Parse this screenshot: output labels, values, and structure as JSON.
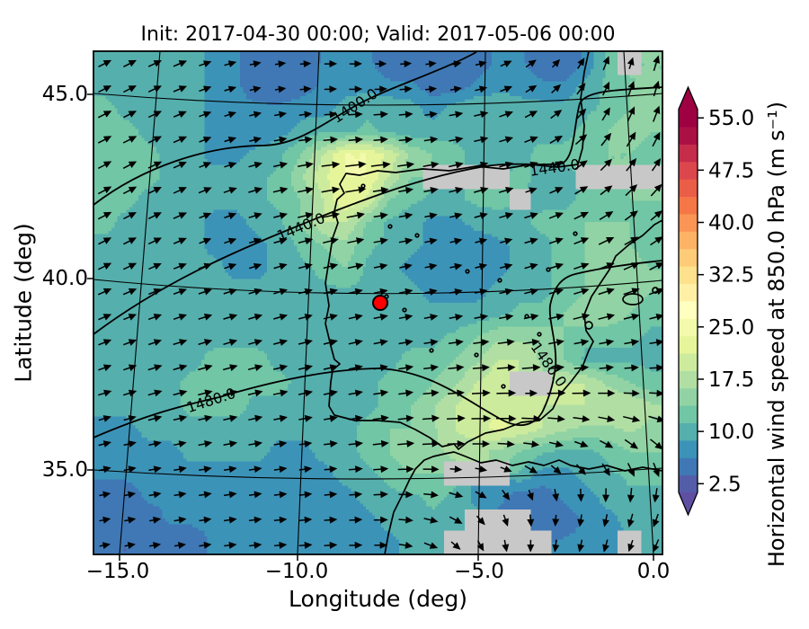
{
  "title": "Init: 2017-04-30 00:00; Valid: 2017-05-06 00:00",
  "axes": {
    "xlabel": "Longitude (deg)",
    "ylabel": "Latitude (deg)",
    "xticks": [
      "−15.0",
      "−10.0",
      "−5.0",
      "0.0"
    ],
    "yticks": [
      "45.0",
      "40.0",
      "35.0"
    ]
  },
  "colorbar": {
    "label": "Horizontal wind speed at 850.0 hPa (m s⁻¹)",
    "tick_values": [
      2.5,
      10.0,
      17.5,
      25.0,
      32.5,
      40.0,
      47.5,
      55.0
    ],
    "tick_labels": [
      "2.5",
      "10.0",
      "17.5",
      "25.0",
      "32.5",
      "40.0",
      "47.5",
      "55.0"
    ],
    "level_min": 1.25,
    "level_max": 56.25,
    "level_step": 2.5,
    "extend": "both",
    "colormap": "Spectral_r",
    "colormap_stops": [
      "#5e4fa2",
      "#3288bd",
      "#66c2a5",
      "#abdda4",
      "#e6f598",
      "#ffffbf",
      "#fee08b",
      "#fdae61",
      "#f46d43",
      "#d53e4f",
      "#9e0142"
    ]
  },
  "colors": {
    "marker_red": "#ff0000",
    "masked_gray": "#c8c8c8",
    "line_black": "#000000"
  },
  "chart_data": {
    "type": "heatmap",
    "title": "Init: 2017-04-30 00:00; Valid: 2017-05-06 00:00",
    "xlabel": "Longitude (deg)",
    "ylabel": "Latitude (deg)",
    "lon_range": [
      -16.1,
      0.9
    ],
    "lat_range": [
      33.6,
      46.3
    ],
    "xticks": [
      -15.0,
      -10.0,
      -5.0,
      0.0
    ],
    "yticks": [
      45.0,
      40.0,
      35.0
    ],
    "contour_levels": [
      1400.0,
      1440.0,
      1480.0
    ],
    "contour_labels": [
      "1400.0",
      "1440.0",
      "1440.0",
      "1480.0",
      "1480.0"
    ],
    "marker_lonlat": [
      -7.9,
      39.4
    ],
    "wind_speed_grid": {
      "cols": 26,
      "rows": 22,
      "units": "m s⁻¹",
      "masked_value": null,
      "values": [
        [
          12,
          12,
          12,
          12,
          11,
          9,
          8,
          6,
          5,
          5,
          8,
          8,
          8,
          6,
          6,
          5,
          5,
          6,
          8,
          8,
          6,
          5,
          8,
          13,
          null,
          15
        ],
        [
          12,
          12,
          12,
          12,
          11,
          9,
          8,
          6,
          5,
          6,
          8,
          9,
          9,
          8,
          8,
          6,
          6,
          8,
          9,
          9,
          8,
          8,
          11,
          13,
          15,
          15
        ],
        [
          13,
          12,
          12,
          11,
          11,
          9,
          8,
          8,
          8,
          9,
          9,
          11,
          12,
          12,
          11,
          9,
          11,
          12,
          12,
          11,
          11,
          11,
          12,
          13,
          15,
          17
        ],
        [
          13,
          13,
          12,
          12,
          11,
          9,
          8,
          8,
          9,
          11,
          12,
          12,
          13,
          12,
          11,
          11,
          12,
          12,
          12,
          12,
          12,
          12,
          13,
          15,
          17,
          15
        ],
        [
          13,
          13,
          13,
          12,
          11,
          9,
          9,
          11,
          12,
          15,
          20,
          25,
          25,
          22,
          17,
          15,
          13,
          12,
          12,
          12,
          13,
          13,
          13,
          15,
          15,
          13
        ],
        [
          13,
          13,
          13,
          12,
          12,
          11,
          11,
          12,
          13,
          17,
          22,
          25,
          25,
          20,
          15,
          null,
          null,
          null,
          null,
          13,
          12,
          12,
          null,
          null,
          null,
          null
        ],
        [
          13,
          13,
          12,
          12,
          12,
          11,
          11,
          12,
          13,
          15,
          20,
          25,
          22,
          15,
          13,
          12,
          12,
          13,
          13,
          null,
          12,
          12,
          13,
          13,
          15,
          15
        ],
        [
          13,
          12,
          12,
          12,
          11,
          9,
          9,
          11,
          12,
          15,
          20,
          20,
          15,
          12,
          11,
          9,
          9,
          11,
          12,
          12,
          13,
          13,
          15,
          15,
          15,
          13
        ],
        [
          12,
          12,
          12,
          11,
          11,
          9,
          9,
          9,
          11,
          13,
          15,
          17,
          13,
          12,
          11,
          9,
          8,
          8,
          9,
          11,
          12,
          13,
          15,
          17,
          15,
          13
        ],
        [
          12,
          12,
          11,
          11,
          11,
          11,
          9,
          9,
          11,
          12,
          13,
          15,
          12,
          11,
          9,
          8,
          8,
          8,
          9,
          11,
          12,
          13,
          15,
          17,
          17,
          15
        ],
        [
          12,
          12,
          11,
          11,
          11,
          11,
          11,
          11,
          12,
          12,
          12,
          12,
          12,
          11,
          11,
          9,
          9,
          9,
          11,
          12,
          12,
          13,
          15,
          17,
          17,
          15
        ],
        [
          11,
          11,
          11,
          11,
          12,
          12,
          12,
          12,
          12,
          12,
          12,
          12,
          12,
          12,
          11,
          11,
          11,
          11,
          12,
          13,
          13,
          15,
          17,
          17,
          15,
          13
        ],
        [
          11,
          11,
          11,
          12,
          12,
          12,
          12,
          12,
          12,
          12,
          12,
          12,
          12,
          12,
          12,
          12,
          13,
          15,
          17,
          17,
          17,
          15,
          13,
          13,
          13,
          12
        ],
        [
          11,
          11,
          12,
          12,
          12,
          13,
          13,
          13,
          12,
          12,
          12,
          12,
          12,
          12,
          13,
          13,
          15,
          17,
          20,
          20,
          17,
          15,
          12,
          12,
          12,
          12
        ],
        [
          11,
          11,
          12,
          12,
          13,
          13,
          13,
          13,
          13,
          12,
          12,
          12,
          12,
          13,
          13,
          15,
          17,
          20,
          22,
          null,
          null,
          20,
          20,
          17,
          15,
          13
        ],
        [
          11,
          11,
          12,
          12,
          13,
          13,
          13,
          12,
          12,
          12,
          11,
          12,
          12,
          13,
          15,
          17,
          20,
          22,
          22,
          22,
          20,
          20,
          20,
          20,
          20,
          18
        ],
        [
          9,
          9,
          11,
          11,
          12,
          12,
          12,
          12,
          11,
          11,
          11,
          12,
          13,
          15,
          15,
          17,
          20,
          22,
          23,
          22,
          20,
          18,
          17,
          17,
          18,
          17
        ],
        [
          9,
          9,
          9,
          9,
          11,
          11,
          11,
          11,
          9,
          9,
          11,
          12,
          13,
          15,
          17,
          17,
          18,
          18,
          17,
          15,
          13,
          12,
          12,
          13,
          15,
          15
        ],
        [
          8,
          8,
          9,
          9,
          9,
          9,
          9,
          9,
          9,
          9,
          9,
          11,
          12,
          13,
          15,
          15,
          null,
          null,
          null,
          12,
          9,
          9,
          11,
          12,
          13,
          13
        ],
        [
          6,
          6,
          8,
          8,
          9,
          9,
          9,
          9,
          9,
          9,
          9,
          9,
          11,
          12,
          12,
          13,
          12,
          9,
          8,
          6,
          6,
          8,
          9,
          11,
          12,
          12
        ],
        [
          6,
          6,
          6,
          8,
          8,
          8,
          9,
          9,
          9,
          9,
          9,
          9,
          9,
          11,
          12,
          12,
          12,
          null,
          null,
          null,
          6,
          6,
          8,
          9,
          11,
          11
        ],
        [
          5,
          5,
          6,
          6,
          6,
          8,
          8,
          8,
          8,
          9,
          9,
          9,
          9,
          9,
          11,
          12,
          null,
          null,
          null,
          null,
          null,
          8,
          8,
          9,
          null,
          11
        ]
      ]
    },
    "wind_direction_grid": {
      "cols": 13,
      "rows": 11,
      "components": "[u_east, v_north]",
      "uv": [
        [
          [
            1,
            0.5
          ],
          [
            1,
            0.5
          ],
          [
            1,
            0.4
          ],
          [
            1,
            0.25
          ],
          [
            1,
            0.1
          ],
          [
            1,
            0
          ],
          [
            1,
            0
          ],
          [
            1,
            0.1
          ],
          [
            1,
            0.2
          ],
          [
            0.8,
            0.5
          ],
          [
            0.5,
            0.7
          ],
          [
            0.3,
            1
          ],
          [
            0.3,
            1
          ]
        ],
        [
          [
            1,
            0.5
          ],
          [
            1,
            0.5
          ],
          [
            1,
            0.4
          ],
          [
            1,
            0.3
          ],
          [
            1,
            0.15
          ],
          [
            1,
            0.05
          ],
          [
            1,
            0.05
          ],
          [
            1,
            0.1
          ],
          [
            1,
            0.2
          ],
          [
            0.8,
            0.4
          ],
          [
            0.6,
            0.6
          ],
          [
            0.4,
            0.9
          ],
          [
            0.3,
            1
          ]
        ],
        [
          [
            1,
            0.55
          ],
          [
            1,
            0.5
          ],
          [
            1,
            0.45
          ],
          [
            1,
            0.3
          ],
          [
            1,
            0.2
          ],
          [
            1,
            0.1
          ],
          [
            1,
            0.1
          ],
          [
            1,
            0.15
          ],
          [
            1,
            0.25
          ],
          [
            1,
            0.3
          ],
          [
            0.8,
            0.5
          ],
          [
            0.6,
            0.8
          ],
          [
            0.5,
            0.9
          ]
        ],
        [
          [
            1,
            0.55
          ],
          [
            1,
            0.5
          ],
          [
            1,
            0.45
          ],
          [
            1,
            0.35
          ],
          [
            1,
            0.25
          ],
          [
            1,
            0.2
          ],
          [
            1,
            0.15
          ],
          [
            1,
            0.2
          ],
          [
            1,
            0.3
          ],
          [
            1,
            0.3
          ],
          [
            0.9,
            0.4
          ],
          [
            0.8,
            0.6
          ],
          [
            0.7,
            0.7
          ]
        ],
        [
          [
            1,
            0.5
          ],
          [
            1,
            0.5
          ],
          [
            1,
            0.4
          ],
          [
            1,
            0.35
          ],
          [
            1,
            0.3
          ],
          [
            1,
            0.25
          ],
          [
            1,
            0.2
          ],
          [
            1,
            0.2
          ],
          [
            1,
            0.25
          ],
          [
            1,
            0.3
          ],
          [
            1,
            0.35
          ],
          [
            0.9,
            0.4
          ],
          [
            0.8,
            0.5
          ]
        ],
        [
          [
            1,
            0.45
          ],
          [
            1,
            0.4
          ],
          [
            1,
            0.35
          ],
          [
            1,
            0.3
          ],
          [
            1,
            0.3
          ],
          [
            1,
            0.25
          ],
          [
            1,
            0.2
          ],
          [
            1,
            0.2
          ],
          [
            1,
            0.2
          ],
          [
            1,
            0.25
          ],
          [
            1,
            0.3
          ],
          [
            1,
            0.3
          ],
          [
            0.9,
            0.3
          ]
        ],
        [
          [
            1,
            0.4
          ],
          [
            1,
            0.35
          ],
          [
            1,
            0.3
          ],
          [
            1,
            0.3
          ],
          [
            1,
            0.25
          ],
          [
            1,
            0.25
          ],
          [
            1,
            0.2
          ],
          [
            1,
            0.15
          ],
          [
            1,
            0.1
          ],
          [
            1,
            0.1
          ],
          [
            1,
            0.15
          ],
          [
            1,
            0.15
          ],
          [
            1,
            0.1
          ]
        ],
        [
          [
            1,
            0.3
          ],
          [
            1,
            0.3
          ],
          [
            1,
            0.25
          ],
          [
            1,
            0.25
          ],
          [
            1,
            0.2
          ],
          [
            1,
            0.2
          ],
          [
            1,
            0.15
          ],
          [
            1,
            0.1
          ],
          [
            1,
            0.05
          ],
          [
            1,
            0
          ],
          [
            1,
            0
          ],
          [
            1,
            -0.05
          ],
          [
            1,
            -0.1
          ]
        ],
        [
          [
            1,
            0.25
          ],
          [
            1,
            0.2
          ],
          [
            1,
            0.2
          ],
          [
            1,
            0.15
          ],
          [
            1,
            0.15
          ],
          [
            1,
            0.1
          ],
          [
            1,
            0.1
          ],
          [
            1,
            0.05
          ],
          [
            1,
            0
          ],
          [
            0.9,
            -0.1
          ],
          [
            0.8,
            -0.3
          ],
          [
            0.6,
            -0.5
          ],
          [
            0.5,
            -0.6
          ]
        ],
        [
          [
            1,
            0.2
          ],
          [
            1,
            0.2
          ],
          [
            1,
            0.15
          ],
          [
            1,
            0.15
          ],
          [
            1,
            0.1
          ],
          [
            1,
            0.1
          ],
          [
            1,
            0.05
          ],
          [
            0.9,
            -0.1
          ],
          [
            0.7,
            -0.4
          ],
          [
            0.2,
            -0.9
          ],
          [
            -0.1,
            -1
          ],
          [
            -0.2,
            -1
          ],
          [
            -0.3,
            -0.9
          ]
        ],
        [
          [
            1,
            0.2
          ],
          [
            1,
            0.15
          ],
          [
            1,
            0.15
          ],
          [
            1,
            0.1
          ],
          [
            1,
            0.1
          ],
          [
            1,
            0.05
          ],
          [
            1,
            0
          ],
          [
            0.8,
            -0.3
          ],
          [
            0.4,
            -0.7
          ],
          [
            0,
            -1
          ],
          [
            -0.2,
            -1
          ],
          [
            -0.3,
            -0.9
          ],
          [
            -0.4,
            -0.8
          ]
        ]
      ]
    }
  }
}
